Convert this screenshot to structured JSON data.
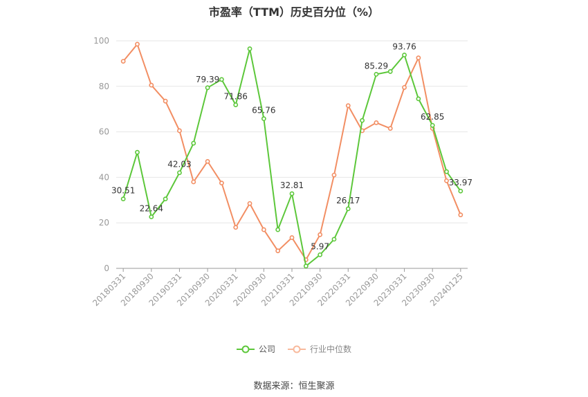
{
  "chart_data": {
    "type": "line",
    "title": "市盈率（TTM）历史百分位（%）",
    "ylim": [
      0,
      100
    ],
    "yticks": [
      0,
      20,
      40,
      60,
      80,
      100
    ],
    "xticks": [
      "20180331",
      "20180930",
      "20190331",
      "20190930",
      "20200331",
      "20200930",
      "20210331",
      "20210930",
      "20220331",
      "20220930",
      "20230331",
      "20230930",
      "20240125"
    ],
    "x": [
      "20180331",
      "20180630",
      "20180930",
      "20181231",
      "20190331",
      "20190630",
      "20190930",
      "20191231",
      "20200331",
      "20200630",
      "20200930",
      "20201231",
      "20210331",
      "20210630",
      "20210930",
      "20211231",
      "20220331",
      "20220630",
      "20220930",
      "20221231",
      "20230331",
      "20230630",
      "20230930",
      "20231231",
      "20240125"
    ],
    "series": [
      {
        "name": "公司",
        "color": "#5cc73a",
        "values": [
          30.51,
          51.0,
          22.64,
          30.5,
          42.03,
          55.0,
          79.39,
          83.0,
          71.86,
          96.5,
          65.76,
          17.0,
          32.81,
          1.0,
          5.97,
          12.8,
          26.17,
          65.0,
          85.29,
          86.5,
          93.76,
          74.5,
          62.85,
          42.5,
          33.97
        ],
        "labels": {
          "0": "30.51",
          "2": "22.64",
          "4": "42.03",
          "6": "79.39",
          "8": "71.86",
          "10": "65.76",
          "12": "32.81",
          "14": "5.97",
          "16": "26.17",
          "18": "85.29",
          "20": "93.76",
          "22": "62.85",
          "24": "33.97"
        }
      },
      {
        "name": "行业中位数",
        "color": "#f28e63",
        "values": [
          91.0,
          98.5,
          80.5,
          73.5,
          60.5,
          38.0,
          47.0,
          37.5,
          18.0,
          28.5,
          17.0,
          7.7,
          13.5,
          3.8,
          14.8,
          41.0,
          71.5,
          60.5,
          64.0,
          61.5,
          79.5,
          92.5,
          61.5,
          38.5,
          23.5
        ]
      }
    ],
    "grid": true,
    "legend_position": "bottom-center"
  },
  "legend": {
    "company": "公司",
    "industry": "行业中位数"
  },
  "source": "数据来源：恒生聚源"
}
